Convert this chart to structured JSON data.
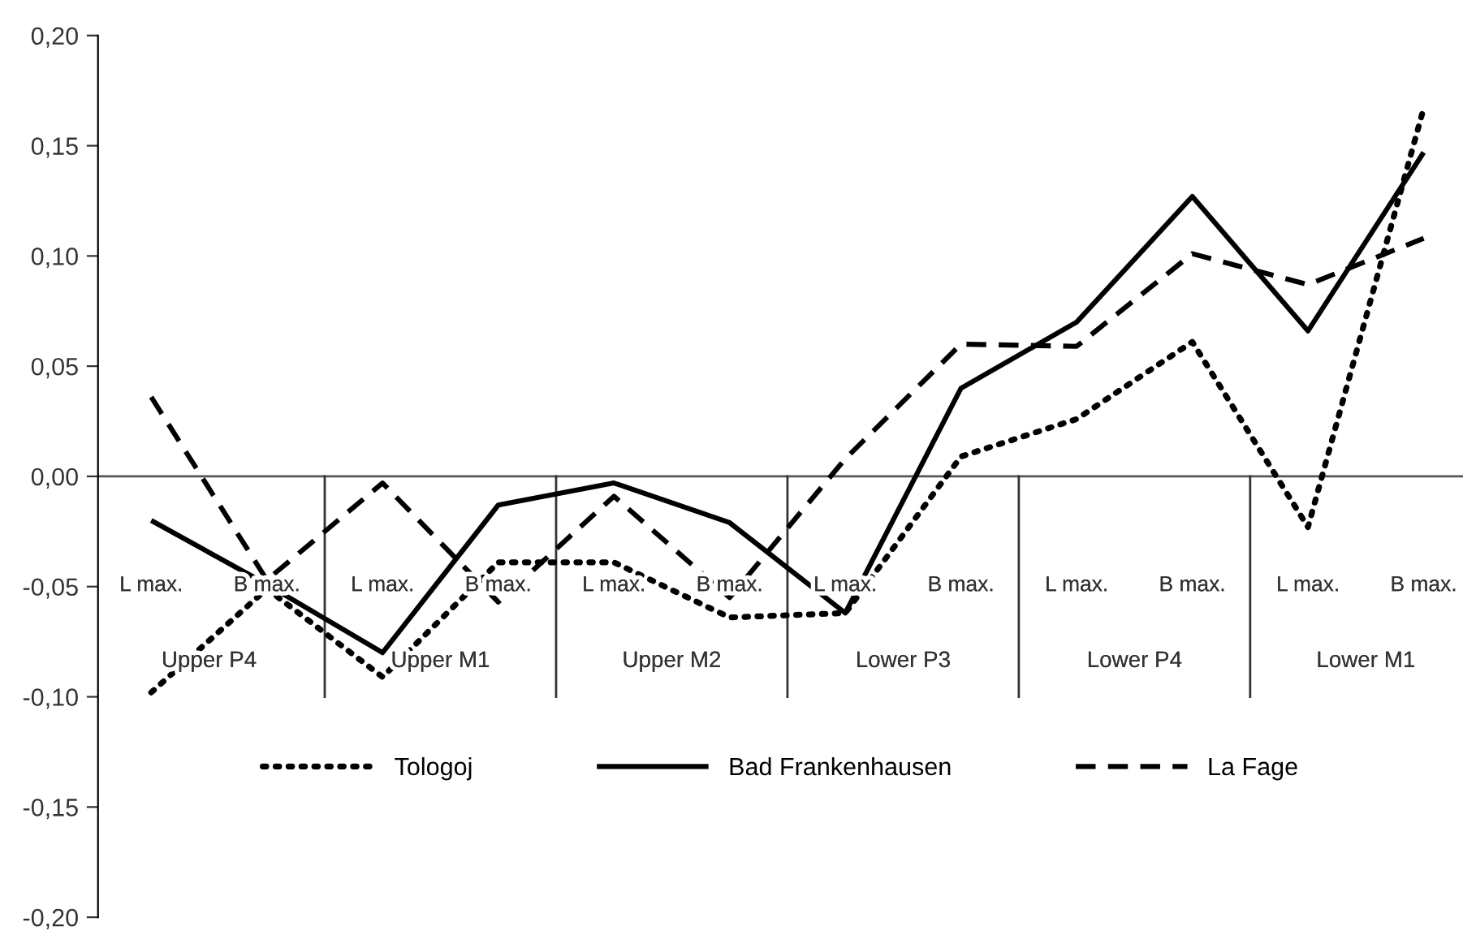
{
  "chart_data": {
    "type": "line",
    "categories": [
      "L max.",
      "B max.",
      "L max.",
      "B max.",
      "L max.",
      "B max.",
      "L max.",
      "B max.",
      "L max.",
      "B max.",
      "L max.",
      "B max."
    ],
    "annotations": [
      "Upper P4",
      "Upper M1",
      "Upper M2",
      "Lower P3",
      "Lower P4",
      "Lower M1"
    ],
    "series": [
      {
        "name": "Tologoj",
        "color": "#000000",
        "line_style": "dotted",
        "values": [
          -0.098,
          -0.051,
          -0.091,
          -0.039,
          -0.039,
          -0.064,
          -0.062,
          0.009,
          0.026,
          0.061,
          -0.023,
          0.167
        ]
      },
      {
        "name": "Bad Frankenhausen",
        "color": "#000000",
        "line_style": "solid",
        "values": [
          -0.02,
          -0.049,
          -0.08,
          -0.013,
          -0.003,
          -0.021,
          -0.062,
          0.04,
          0.07,
          0.127,
          0.066,
          0.147
        ]
      },
      {
        "name": "La Fage",
        "color": "#000000",
        "line_style": "dashed",
        "values": [
          0.036,
          -0.047,
          -0.003,
          -0.057,
          -0.009,
          -0.055,
          0.008,
          0.06,
          0.059,
          0.101,
          0.087,
          0.108
        ]
      }
    ],
    "ylim": [
      -0.2,
      0.2
    ],
    "yticks": [
      {
        "value": -0.2,
        "label": "-0,20"
      },
      {
        "value": -0.15,
        "label": "-0,15"
      },
      {
        "value": -0.1,
        "label": "-0,10"
      },
      {
        "value": -0.05,
        "label": "-0,05"
      },
      {
        "value": 0.0,
        "label": "0,00"
      },
      {
        "value": 0.05,
        "label": "0,05"
      },
      {
        "value": 0.1,
        "label": "0,10"
      },
      {
        "value": 0.15,
        "label": "0,15"
      },
      {
        "value": 0.2,
        "label": "0,20"
      }
    ],
    "grid": false,
    "ref_lines": [
      {
        "axis": "y",
        "value": 0,
        "color": "#555555"
      }
    ],
    "legend": "bottom",
    "marker": "none"
  }
}
